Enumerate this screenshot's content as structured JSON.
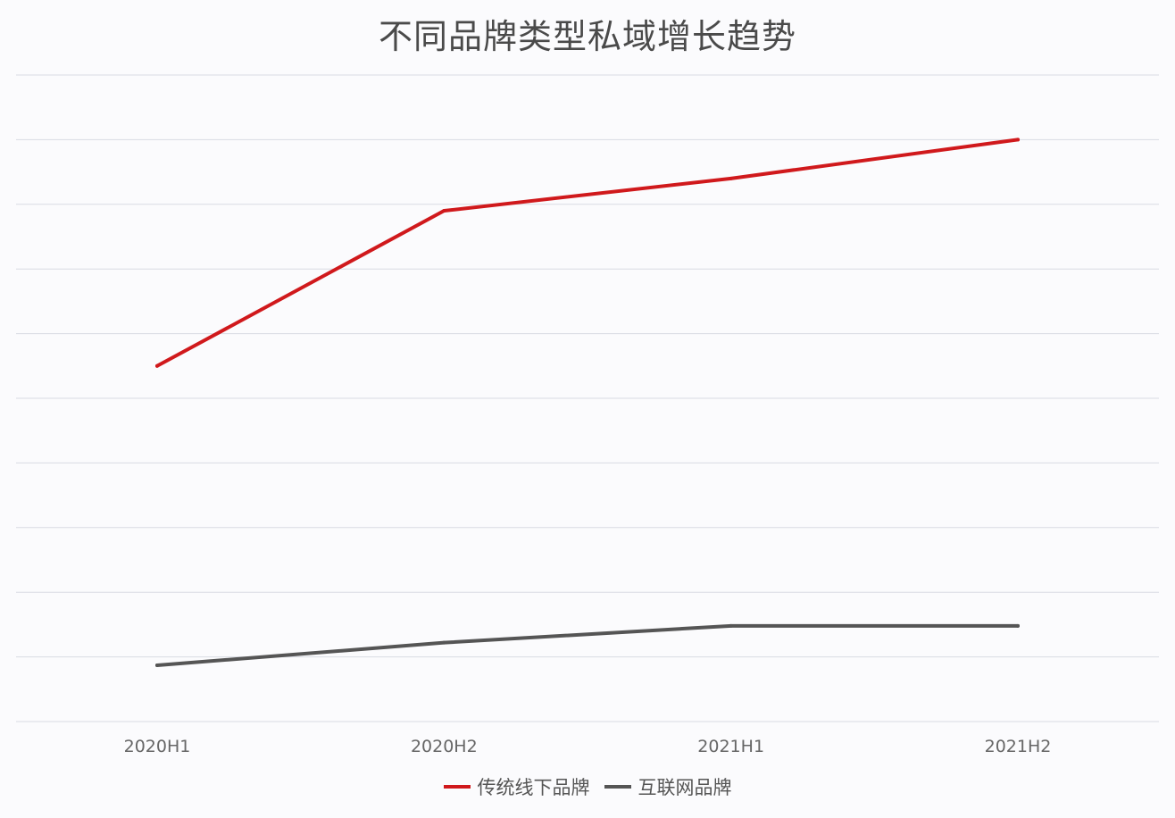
{
  "chart_data": {
    "type": "line",
    "title": "不同品牌类型私域增长趋势",
    "xlabel": "",
    "ylabel": "",
    "categories": [
      "2020H1",
      "2020H2",
      "2021H1",
      "2021H2"
    ],
    "series": [
      {
        "name": "传统线下品牌",
        "color": "#d0191c",
        "values": [
          55,
          79,
          84,
          90
        ]
      },
      {
        "name": "互联网品牌",
        "color": "#555555",
        "values": [
          8.7,
          12.2,
          14.8,
          14.8
        ]
      }
    ],
    "ylim": [
      0,
      100
    ],
    "y_gridlines": [
      0,
      10,
      20,
      30,
      40,
      50,
      60,
      70,
      80,
      90,
      100
    ],
    "y_tick_labels_shown": false,
    "grid": true,
    "legend_position": "bottom-center"
  }
}
